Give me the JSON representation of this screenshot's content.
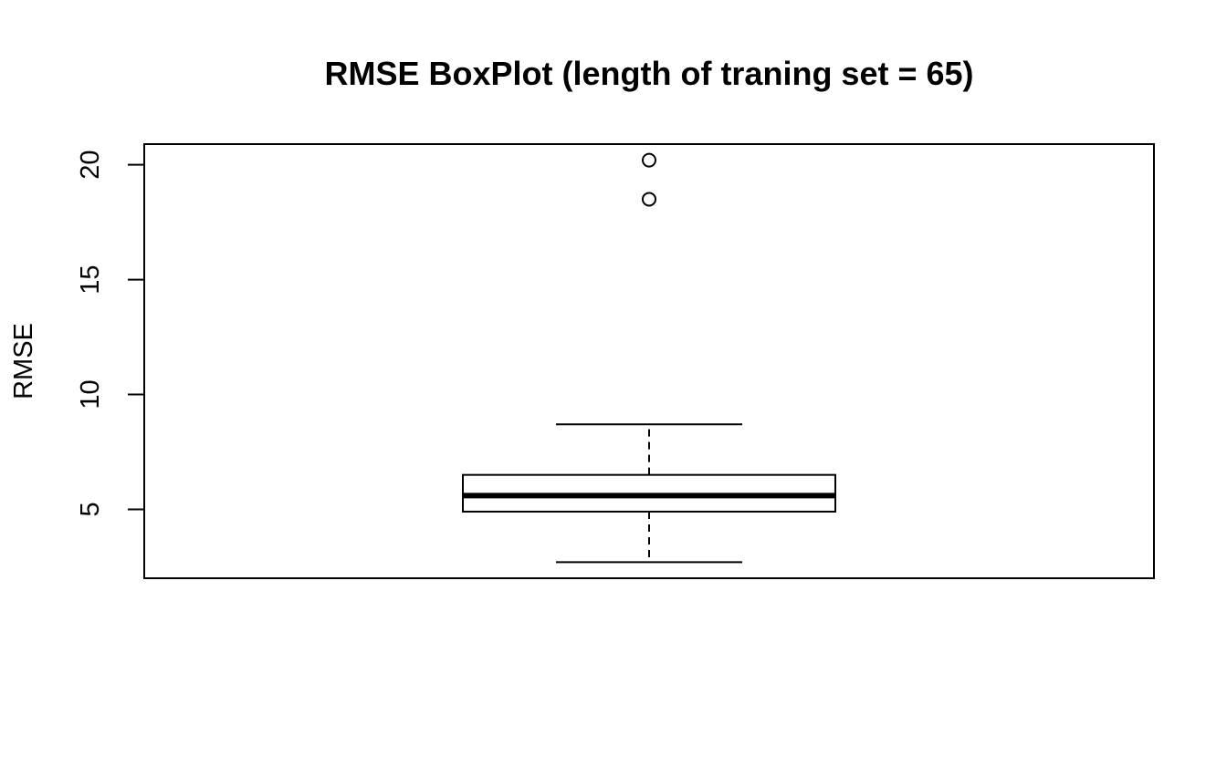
{
  "chart_data": {
    "type": "boxplot",
    "title": "RMSE BoxPlot (length of traning set = 65)",
    "xlabel": "",
    "ylabel": "RMSE",
    "ylim": [
      2.0,
      20.9
    ],
    "yticks": [
      5,
      10,
      15,
      20
    ],
    "ytick_labels": [
      "5",
      "10",
      "15",
      "20"
    ],
    "grid": false,
    "legend": "none",
    "boxes": [
      {
        "whisker_low": 2.7,
        "q1": 4.9,
        "median": 5.6,
        "q3": 6.5,
        "whisker_high": 8.7,
        "outliers": [
          18.5,
          20.2
        ]
      }
    ]
  }
}
